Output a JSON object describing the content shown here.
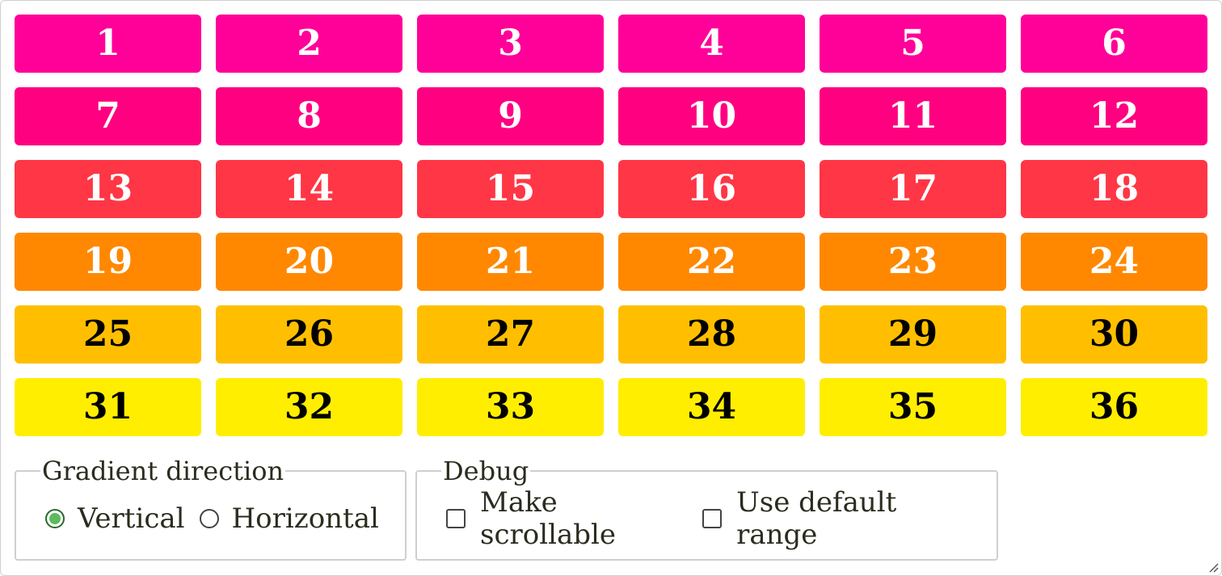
{
  "grid": {
    "rows": [
      {
        "bg": "#FF0099",
        "fg": "#ffffff",
        "labels": [
          "1",
          "2",
          "3",
          "4",
          "5",
          "6"
        ]
      },
      {
        "bg": "#FF0080",
        "fg": "#ffffff",
        "labels": [
          "7",
          "8",
          "9",
          "10",
          "11",
          "12"
        ]
      },
      {
        "bg": "#FF3645",
        "fg": "#ffffff",
        "labels": [
          "13",
          "14",
          "15",
          "16",
          "17",
          "18"
        ]
      },
      {
        "bg": "#FF8800",
        "fg": "#ffffff",
        "labels": [
          "19",
          "20",
          "21",
          "22",
          "23",
          "24"
        ]
      },
      {
        "bg": "#FFBF00",
        "fg": "#000000",
        "labels": [
          "25",
          "26",
          "27",
          "28",
          "29",
          "30"
        ]
      },
      {
        "bg": "#FFEE00",
        "fg": "#000000",
        "labels": [
          "31",
          "32",
          "33",
          "34",
          "35",
          "36"
        ]
      }
    ]
  },
  "gradient_direction": {
    "legend": "Gradient direction",
    "options": [
      {
        "label": "Vertical",
        "checked": true
      },
      {
        "label": "Horizontal",
        "checked": false
      }
    ]
  },
  "debug": {
    "legend": "Debug",
    "options": [
      {
        "label": "Make scrollable",
        "checked": false
      },
      {
        "label": "Use default range",
        "checked": false
      }
    ]
  },
  "icons": {
    "resize_handle": "resize-grip-icon"
  }
}
